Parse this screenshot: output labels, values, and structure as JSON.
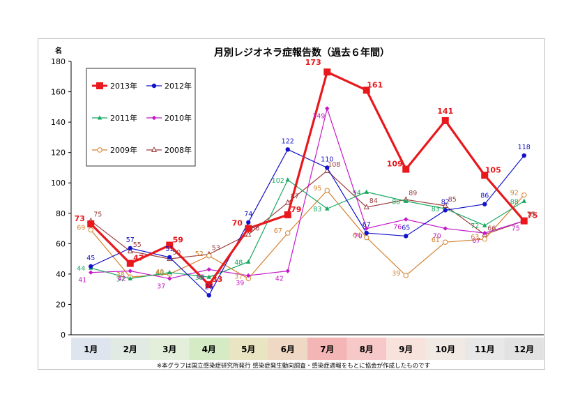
{
  "chart_data": {
    "type": "line",
    "title": "月別レジオネラ症報告数（過去６年間）",
    "ylabel": "名",
    "ylim": [
      0,
      180
    ],
    "yticks": [
      0,
      20,
      40,
      60,
      80,
      100,
      120,
      140,
      160,
      180
    ],
    "categories": [
      "1月",
      "2月",
      "3月",
      "4月",
      "5月",
      "6月",
      "7月",
      "8月",
      "9月",
      "10月",
      "11月",
      "12月"
    ],
    "grid": false,
    "legend": "top-left",
    "series": [
      {
        "name": "2013年",
        "color": "#e8181d",
        "marker": "square",
        "values": [
          73,
          47,
          59,
          33,
          70,
          79,
          173,
          161,
          109,
          141,
          105,
          75
        ]
      },
      {
        "name": "2012年",
        "color": "#1212c8",
        "marker": "circle",
        "values": [
          45,
          57,
          51,
          26,
          74,
          122,
          110,
          67,
          65,
          82,
          86,
          118
        ]
      },
      {
        "name": "2011年",
        "color": "#18a860",
        "marker": "triangle",
        "values": [
          44,
          37,
          41,
          38,
          48,
          102,
          83,
          94,
          88,
          83,
          72,
          88
        ]
      },
      {
        "name": "2010年",
        "color": "#c418c8",
        "marker": "diamond",
        "values": [
          41,
          42,
          37,
          43,
          39,
          42,
          149,
          70,
          76,
          70,
          67,
          75
        ]
      },
      {
        "name": "2009年",
        "color": "#d4802c",
        "marker": "open-circle",
        "values": [
          69,
          38,
          40,
          52,
          37,
          67,
          95,
          64,
          39,
          61,
          63,
          92
        ]
      },
      {
        "name": "2008年",
        "color": "#9a3c3c",
        "marker": "open-triangle",
        "values": [
          75,
          55,
          50,
          53,
          66,
          87,
          108,
          84,
          89,
          85,
          66,
          75
        ]
      }
    ],
    "category_band_colors": [
      "#dfe5ee",
      "#e2ebe3",
      "#e3efda",
      "#d4ebc6",
      "#e9e4c2",
      "#efd9c4",
      "#f3b5b5",
      "#f6c8c8",
      "#f8e2dc",
      "#f1e9e4",
      "#e8e8e8",
      "#e2e2e2"
    ]
  },
  "footnote": "※本グラフは国立感染症研究所発行 感染症発生動向調査・感染症週報をもとに協会が作成したものです"
}
